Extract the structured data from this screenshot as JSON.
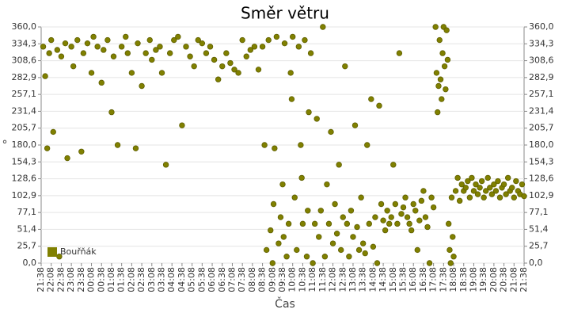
{
  "chart_data": {
    "type": "scatter",
    "title": "Směr větru",
    "x_label": "Čas",
    "y_label": "°",
    "legend": "bottom-left",
    "grid": true,
    "xlim": [
      0,
      24
    ],
    "ylim": [
      0,
      360
    ],
    "y2lim": [
      0,
      360
    ],
    "xticks": [
      {
        "value": 0,
        "label": "21:38"
      },
      {
        "value": 0.5,
        "label": "22:08"
      },
      {
        "value": 1,
        "label": "22:38"
      },
      {
        "value": 1.5,
        "label": "23:08"
      },
      {
        "value": 2,
        "label": "23:38"
      },
      {
        "value": 2.5,
        "label": "00:08"
      },
      {
        "value": 3,
        "label": "00:38"
      },
      {
        "value": 3.5,
        "label": "01:08"
      },
      {
        "value": 4,
        "label": "01:38"
      },
      {
        "value": 4.5,
        "label": "02:08"
      },
      {
        "value": 5,
        "label": "02:38"
      },
      {
        "value": 5.5,
        "label": "03:08"
      },
      {
        "value": 6,
        "label": "03:38"
      },
      {
        "value": 6.5,
        "label": "04:08"
      },
      {
        "value": 7,
        "label": "04:38"
      },
      {
        "value": 7.5,
        "label": "05:08"
      },
      {
        "value": 8,
        "label": "05:38"
      },
      {
        "value": 8.5,
        "label": "06:08"
      },
      {
        "value": 9,
        "label": "06:38"
      },
      {
        "value": 9.5,
        "label": "07:08"
      },
      {
        "value": 10,
        "label": "07:38"
      },
      {
        "value": 10.5,
        "label": "08:08"
      },
      {
        "value": 11,
        "label": "08:38"
      },
      {
        "value": 11.5,
        "label": "09:08"
      },
      {
        "value": 12,
        "label": "09:38"
      },
      {
        "value": 12.5,
        "label": "10:08"
      },
      {
        "value": 13,
        "label": "10:38"
      },
      {
        "value": 13.5,
        "label": "11:08"
      },
      {
        "value": 14,
        "label": "11:38"
      },
      {
        "value": 14.5,
        "label": "12:08"
      },
      {
        "value": 15,
        "label": "12:38"
      },
      {
        "value": 15.5,
        "label": "13:08"
      },
      {
        "value": 16,
        "label": "13:38"
      },
      {
        "value": 16.5,
        "label": "14:08"
      },
      {
        "value": 17,
        "label": "14:38"
      },
      {
        "value": 17.5,
        "label": "15:08"
      },
      {
        "value": 18,
        "label": "15:38"
      },
      {
        "value": 18.5,
        "label": "16:08"
      },
      {
        "value": 19,
        "label": "16:38"
      },
      {
        "value": 19.5,
        "label": "17:08"
      },
      {
        "value": 20,
        "label": "17:38"
      },
      {
        "value": 20.5,
        "label": "18:08"
      },
      {
        "value": 21,
        "label": "18:38"
      },
      {
        "value": 21.5,
        "label": "19:08"
      },
      {
        "value": 22,
        "label": "19:38"
      },
      {
        "value": 22.5,
        "label": "20:08"
      },
      {
        "value": 23,
        "label": "20:38"
      },
      {
        "value": 23.5,
        "label": "21:08"
      },
      {
        "value": 24,
        "label": "21:38"
      }
    ],
    "yticks": [
      {
        "value": 0,
        "label": "0,0"
      },
      {
        "value": 25.714,
        "label": "25,7"
      },
      {
        "value": 51.429,
        "label": "51,4"
      },
      {
        "value": 77.143,
        "label": "77,1"
      },
      {
        "value": 102.857,
        "label": "102,9"
      },
      {
        "value": 128.571,
        "label": "128,6"
      },
      {
        "value": 154.286,
        "label": "154,3"
      },
      {
        "value": 180,
        "label": "180,0"
      },
      {
        "value": 205.714,
        "label": "205,7"
      },
      {
        "value": 231.429,
        "label": "231,4"
      },
      {
        "value": 257.143,
        "label": "257,1"
      },
      {
        "value": 282.857,
        "label": "282,9"
      },
      {
        "value": 308.571,
        "label": "308,6"
      },
      {
        "value": 334.286,
        "label": "334,3"
      },
      {
        "value": 360,
        "label": "360,0"
      }
    ],
    "y2ticks": [
      {
        "value": 0,
        "label": "0,0"
      },
      {
        "value": 25.714,
        "label": "25,7"
      },
      {
        "value": 51.429,
        "label": "51,4"
      },
      {
        "value": 77.143,
        "label": "77,1"
      },
      {
        "value": 102.857,
        "label": "102,9"
      },
      {
        "value": 128.571,
        "label": "128,6"
      },
      {
        "value": 154.286,
        "label": "154,3"
      },
      {
        "value": 180,
        "label": "180,0"
      },
      {
        "value": 205.714,
        "label": "205,7"
      },
      {
        "value": 231.429,
        "label": "231,4"
      },
      {
        "value": 257.143,
        "label": "257,1"
      },
      {
        "value": 282.857,
        "label": "282,9"
      },
      {
        "value": 308.571,
        "label": "308,6"
      },
      {
        "value": 334.286,
        "label": "334,3"
      },
      {
        "value": 360,
        "label": "360,0"
      }
    ],
    "series": [
      {
        "name": "Bouřňák",
        "color": "#808000",
        "x": [
          0.1,
          0.2,
          0.3,
          0.4,
          0.5,
          0.6,
          0.8,
          0.9,
          1.0,
          1.2,
          1.3,
          1.5,
          1.6,
          1.8,
          2.0,
          2.1,
          2.3,
          2.5,
          2.6,
          2.8,
          3.0,
          3.1,
          3.3,
          3.5,
          3.6,
          3.8,
          4.0,
          4.2,
          4.3,
          4.5,
          4.7,
          4.8,
          5.0,
          5.2,
          5.4,
          5.5,
          5.7,
          5.9,
          6.0,
          6.2,
          6.4,
          6.6,
          6.8,
          7.0,
          7.2,
          7.4,
          7.6,
          7.8,
          8.0,
          8.2,
          8.4,
          8.6,
          8.8,
          9.0,
          9.2,
          9.4,
          9.6,
          9.8,
          10.0,
          10.2,
          10.4,
          10.6,
          10.8,
          11.0,
          11.1,
          11.2,
          11.3,
          11.4,
          11.5,
          11.6,
          11.7,
          11.8,
          11.9,
          12.0,
          12.1,
          12.2,
          12.3,
          12.4,
          12.5,
          12.6,
          12.7,
          12.8,
          12.9,
          13.0,
          13.1,
          13.2,
          13.3,
          13.4,
          13.5,
          12.05,
          11.55,
          12.45,
          12.95,
          13.25,
          13.6,
          13.7,
          13.8,
          13.9,
          14.0,
          14.1,
          14.2,
          14.3,
          14.4,
          14.5,
          14.6,
          14.7,
          14.8,
          14.9,
          15.0,
          15.1,
          15.2,
          15.3,
          15.4,
          15.5,
          15.6,
          15.7,
          15.8,
          15.9,
          16.0,
          16.1,
          16.2,
          16.3,
          16.4,
          16.5,
          16.6,
          16.7,
          16.8,
          16.9,
          17.0,
          17.1,
          17.2,
          17.3,
          17.4,
          17.5,
          17.6,
          17.7,
          17.8,
          17.9,
          18.0,
          18.1,
          18.2,
          18.3,
          18.4,
          18.5,
          18.6,
          18.7,
          18.8,
          18.9,
          19.0,
          19.1,
          19.2,
          19.3,
          19.4,
          19.5,
          19.6,
          19.65,
          19.7,
          19.75,
          19.8,
          19.85,
          19.9,
          19.95,
          20.0,
          20.05,
          20.1,
          20.15,
          20.2,
          20.25,
          20.3,
          20.35,
          20.4,
          20.45,
          20.5,
          20.6,
          20.7,
          20.8,
          20.9,
          21.0,
          21.1,
          21.2,
          21.3,
          21.4,
          21.5,
          21.6,
          21.7,
          21.8,
          21.9,
          22.0,
          22.1,
          22.2,
          22.3,
          22.4,
          22.5,
          22.6,
          22.7,
          22.8,
          22.9,
          23.0,
          23.1,
          23.2,
          23.3,
          23.4,
          23.5,
          23.6,
          23.7,
          23.8,
          23.9,
          24.0
        ],
        "values": [
          330,
          285,
          175,
          320,
          340,
          200,
          325,
          10,
          315,
          335,
          160,
          330,
          300,
          340,
          170,
          320,
          335,
          290,
          345,
          330,
          275,
          325,
          340,
          230,
          315,
          180,
          330,
          345,
          320,
          290,
          175,
          335,
          270,
          320,
          340,
          310,
          325,
          330,
          290,
          150,
          320,
          340,
          345,
          210,
          330,
          315,
          300,
          340,
          335,
          320,
          330,
          310,
          280,
          300,
          320,
          305,
          295,
          290,
          340,
          315,
          325,
          330,
          295,
          330,
          180,
          20,
          340,
          50,
          0,
          175,
          345,
          30,
          70,
          120,
          335,
          10,
          60,
          290,
          345,
          100,
          20,
          330,
          180,
          60,
          340,
          10,
          230,
          320,
          0,
          40,
          90,
          250,
          130,
          80,
          60,
          220,
          40,
          80,
          360,
          10,
          120,
          60,
          200,
          30,
          90,
          45,
          150,
          20,
          70,
          300,
          60,
          10,
          80,
          40,
          210,
          55,
          20,
          100,
          30,
          15,
          180,
          60,
          250,
          25,
          70,
          0,
          240,
          90,
          65,
          50,
          80,
          60,
          70,
          150,
          90,
          60,
          320,
          75,
          85,
          100,
          70,
          60,
          50,
          90,
          80,
          20,
          65,
          95,
          110,
          70,
          55,
          0,
          100,
          85,
          360,
          290,
          230,
          270,
          340,
          280,
          250,
          320,
          360,
          300,
          265,
          355,
          310,
          60,
          20,
          0,
          100,
          40,
          10,
          110,
          130,
          95,
          120,
          110,
          115,
          125,
          100,
          130,
          110,
          120,
          105,
          115,
          125,
          100,
          110,
          130,
          115,
          105,
          120,
          110,
          125,
          100,
          115,
          120,
          105,
          130,
          110,
          115,
          100,
          125,
          110,
          105,
          120,
          102
        ]
      }
    ]
  }
}
